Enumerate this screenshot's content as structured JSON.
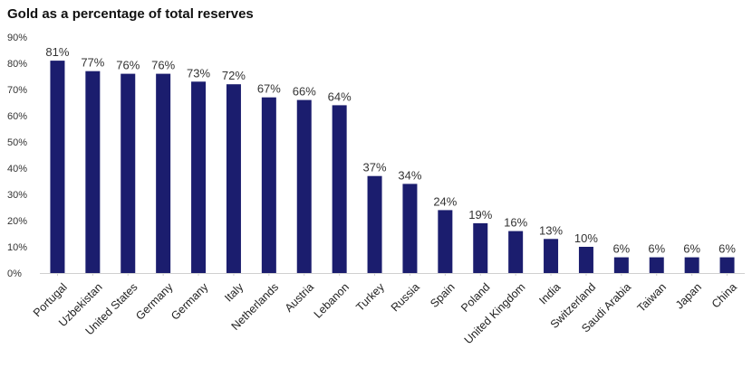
{
  "chart_data": {
    "type": "bar",
    "title": "Gold as a percentage of total reserves",
    "xlabel": "",
    "ylabel": "",
    "ylim": [
      0,
      90
    ],
    "yticks": [
      "0%",
      "10%",
      "20%",
      "30%",
      "40%",
      "50%",
      "60%",
      "70%",
      "80%",
      "90%"
    ],
    "categories": [
      "Portugal",
      "Uzbekistan",
      "United States",
      "Germany",
      "Germany",
      "Italy",
      "Netherlands",
      "Austria",
      "Lebanon",
      "Turkey",
      "Russia",
      "Spain",
      "Poland",
      "United Kingdom",
      "India",
      "Switzerland",
      "Saudi Arabia",
      "Taiwan",
      "Japan",
      "China"
    ],
    "values": [
      81,
      77,
      76,
      76,
      73,
      72,
      67,
      66,
      64,
      37,
      34,
      24,
      19,
      16,
      13,
      10,
      6,
      6,
      6,
      6
    ],
    "data_labels": [
      "81%",
      "77%",
      "76%",
      "76%",
      "73%",
      "72%",
      "67%",
      "66%",
      "64%",
      "37%",
      "34%",
      "24%",
      "19%",
      "16%",
      "13%",
      "10%",
      "6%",
      "6%",
      "6%",
      "6%"
    ],
    "bar_color": "#1b1d6e",
    "grid": false,
    "legend": "none"
  }
}
